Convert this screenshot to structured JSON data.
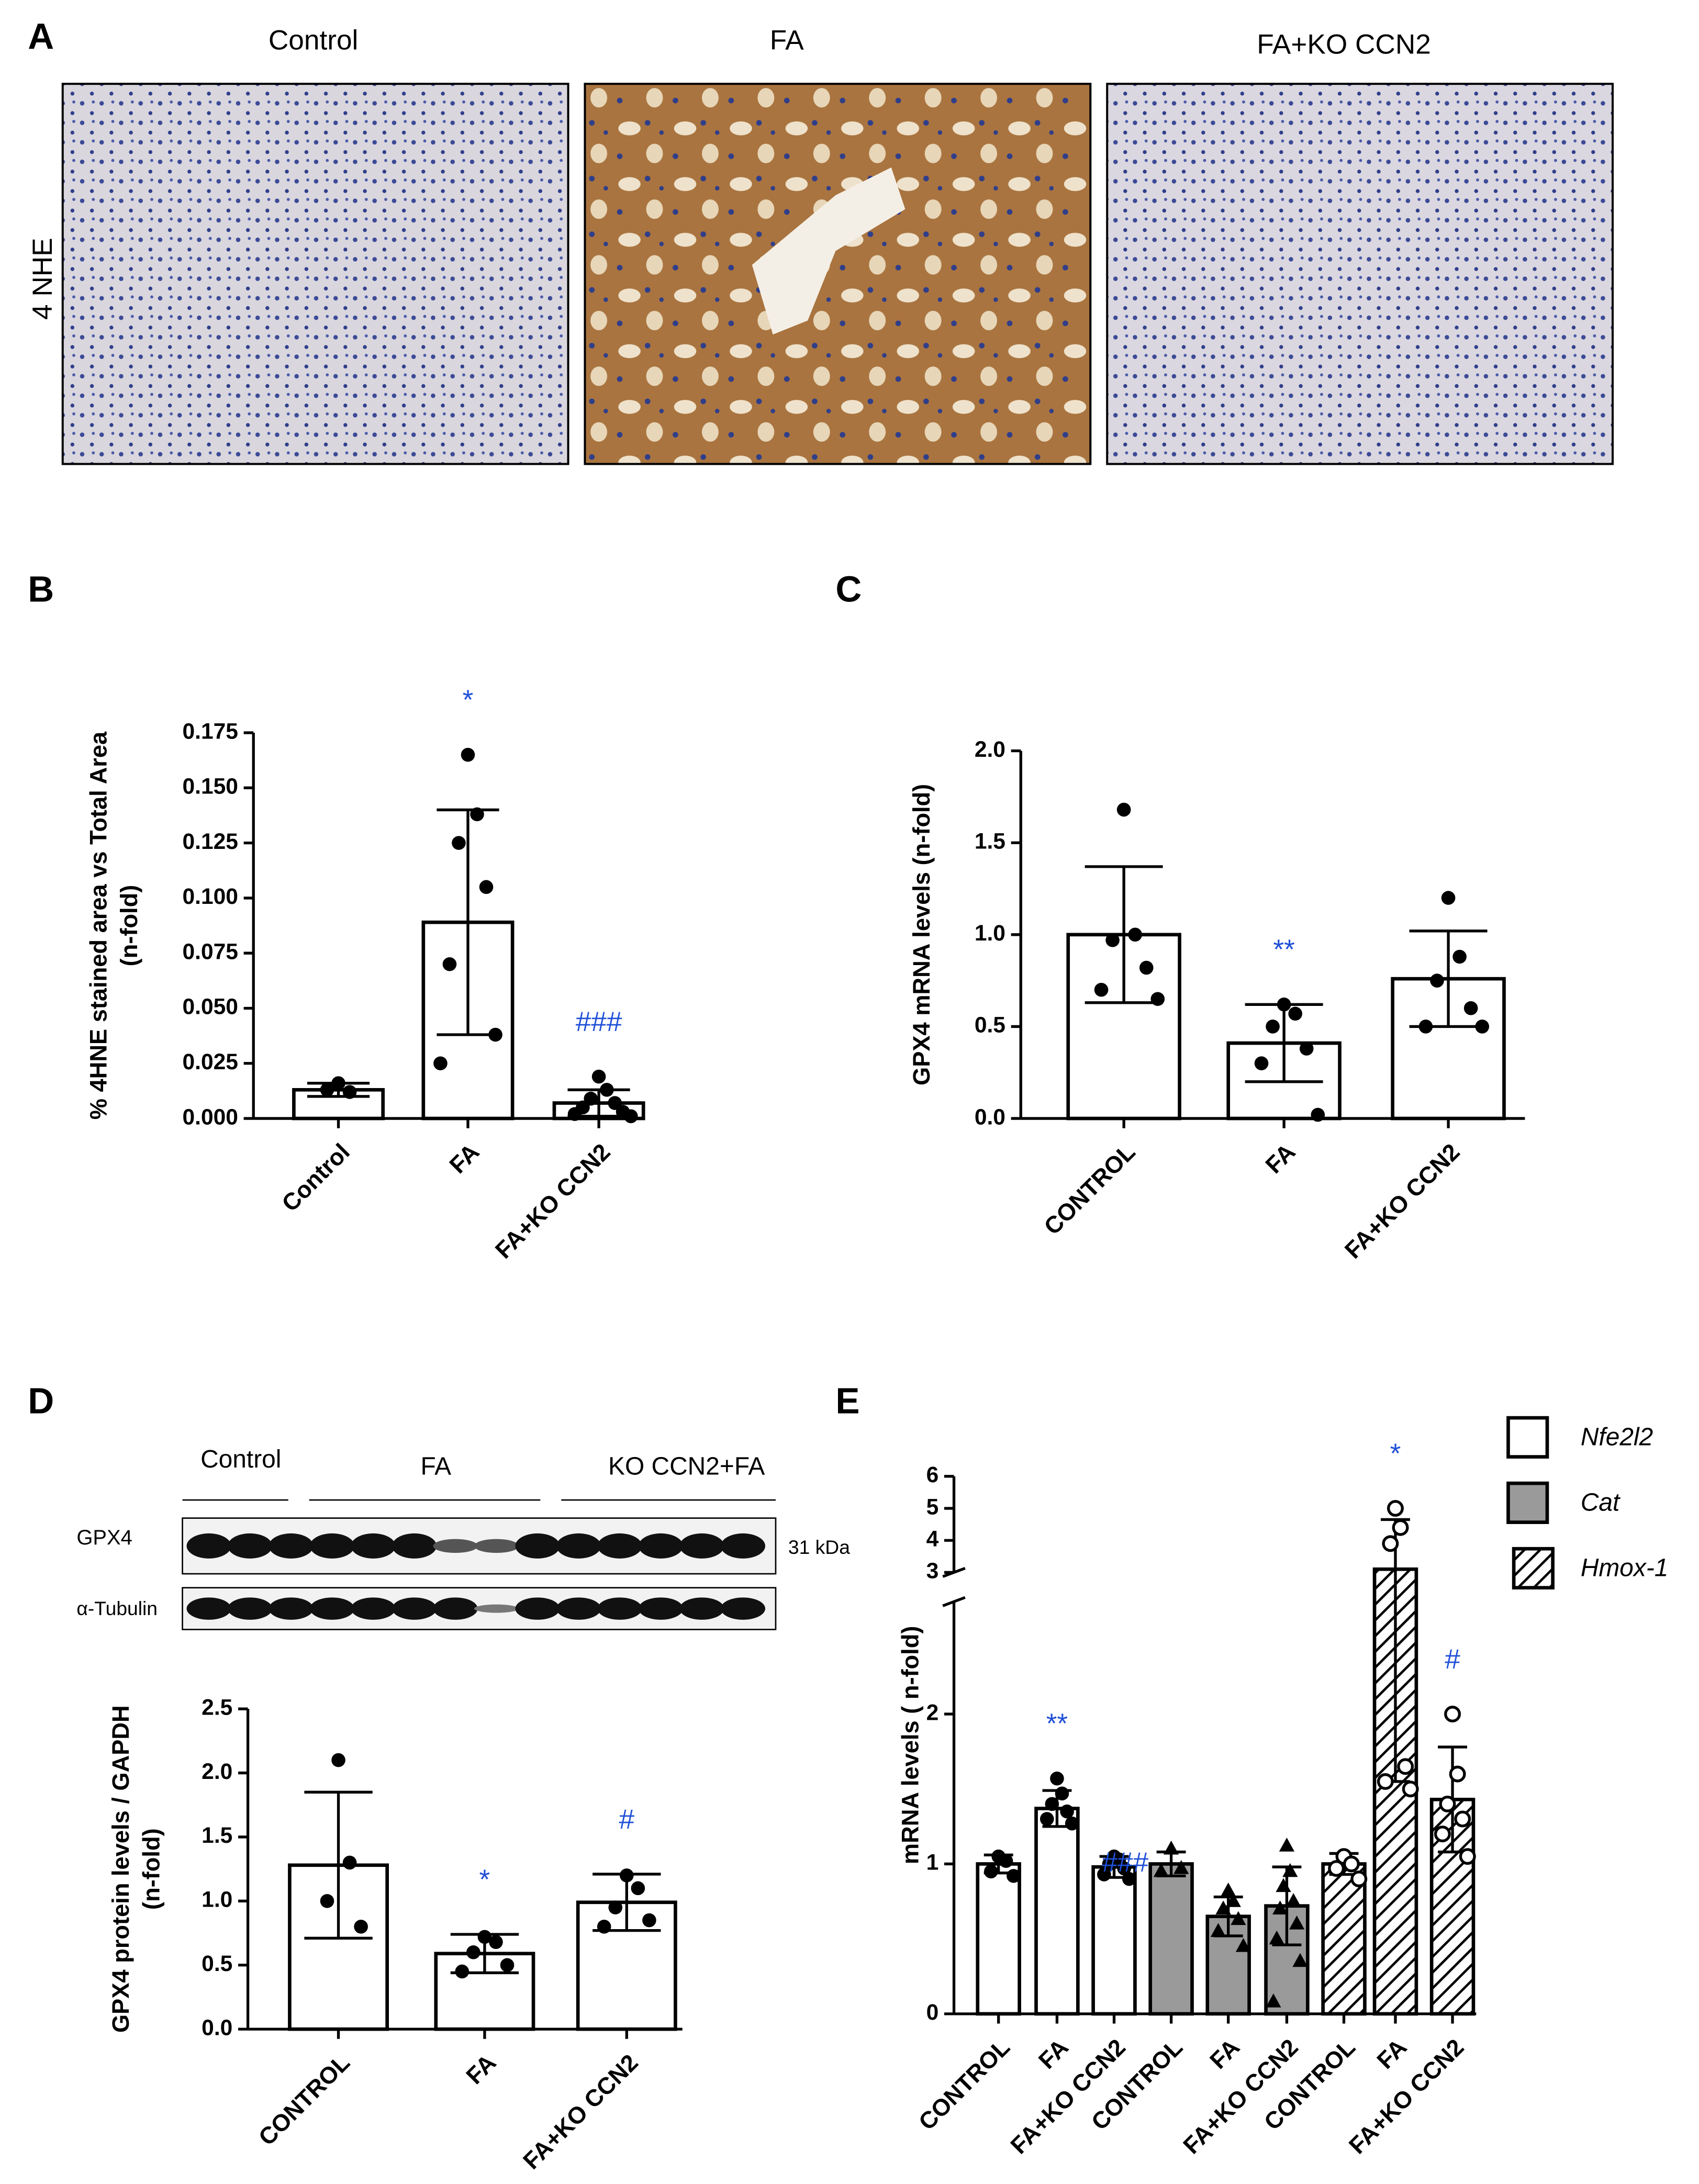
{
  "panel_a": {
    "label": "A",
    "row_label": "4 NHE",
    "columns": [
      "Control",
      "FA",
      "FA+KO CCN2"
    ]
  },
  "blot": {
    "label": "D",
    "groups": [
      "Control",
      "FA",
      "KO CCN2+FA"
    ],
    "rows": [
      "GPX4",
      "α-Tubulin"
    ],
    "size": "31 kDa"
  },
  "chart_data": [
    {
      "type": "bar",
      "panel": "B",
      "ylabel": [
        "% 4HNE stained area vs Total Area",
        "(n-fold)"
      ],
      "categories": [
        "Control",
        "FA",
        "FA+KO CCN2"
      ],
      "color": "#ffffff",
      "marker": "circle",
      "values": [
        0.013,
        0.089,
        0.007
      ],
      "errors": [
        0.003,
        0.051,
        0.006
      ],
      "points": [
        [
          0.016,
          0.012,
          0.013
        ],
        [
          0.165,
          0.138,
          0.125,
          0.105,
          0.07,
          0.038,
          0.025
        ],
        [
          0.019,
          0.013,
          0.009,
          0.007,
          0.005,
          0.003,
          0.002,
          0.001
        ]
      ],
      "annotations": [
        {
          "category": 1,
          "text": "*"
        },
        {
          "category": 2,
          "text": "###"
        }
      ],
      "ylim": [
        0,
        0.175
      ],
      "yticks": [
        {
          "value": 0,
          "label": "0.000"
        },
        {
          "value": 0.025,
          "label": "0.025"
        },
        {
          "value": 0.05,
          "label": "0.050"
        },
        {
          "value": 0.075,
          "label": "0.075"
        },
        {
          "value": 0.1,
          "label": "0.100"
        },
        {
          "value": 0.125,
          "label": "0.125"
        },
        {
          "value": 0.15,
          "label": "0.150"
        },
        {
          "value": 0.175,
          "label": "0.175"
        }
      ]
    },
    {
      "type": "bar",
      "panel": "C",
      "ylabel": [
        "GPX4 mRNA levels  (n-fold)"
      ],
      "categories": [
        "CONTROL",
        "FA",
        "FA+KO CCN2"
      ],
      "color": "#ffffff",
      "marker": "circle",
      "values": [
        1.0,
        0.41,
        0.76
      ],
      "errors": [
        0.37,
        0.21,
        0.26
      ],
      "points": [
        [
          1.68,
          1.0,
          0.97,
          0.82,
          0.7,
          0.65
        ],
        [
          0.62,
          0.57,
          0.5,
          0.38,
          0.3,
          0.02
        ],
        [
          1.2,
          0.88,
          0.75,
          0.6,
          0.5,
          0.5
        ]
      ],
      "annotations": [
        {
          "category": 1,
          "text": "**"
        }
      ],
      "ylim": [
        0,
        2.0
      ],
      "yticks": [
        {
          "value": 0,
          "label": "0.0"
        },
        0.5,
        {
          "value": 1,
          "label": "1.0"
        },
        1.5,
        {
          "value": 2,
          "label": "2.0"
        }
      ]
    },
    {
      "type": "bar",
      "ylabel": [
        "GPX4 protein levels / GAPDH",
        "(n-fold)"
      ],
      "categories": [
        "CONTROL",
        "FA",
        "FA+KO CCN2"
      ],
      "color": "#ffffff",
      "marker": "circle",
      "values": [
        1.28,
        0.59,
        0.99
      ],
      "errors": [
        0.57,
        0.15,
        0.22
      ],
      "points": [
        [
          2.1,
          1.3,
          1.0,
          0.8
        ],
        [
          0.72,
          0.68,
          0.6,
          0.5,
          0.45
        ],
        [
          1.2,
          1.1,
          0.95,
          0.85,
          0.8
        ]
      ],
      "annotations": [
        {
          "category": 1,
          "text": "*"
        },
        {
          "category": 2,
          "text": "#"
        }
      ],
      "ylim": [
        0,
        2.5
      ],
      "yticks": [
        {
          "value": 0,
          "label": "0.0"
        },
        0.5,
        {
          "value": 1,
          "label": "1.0"
        },
        1.5,
        {
          "value": 2,
          "label": "2.0"
        },
        2.5
      ]
    },
    {
      "type": "bar",
      "panel": "E",
      "ylabel": [
        "mRNA levels ( n-fold)"
      ],
      "legend": "upper right",
      "categories": [
        "CONTROL",
        "FA",
        "FA+KO CCN2"
      ],
      "ylim": [
        0,
        6
      ],
      "ybreak": [
        2.75,
        3
      ],
      "yticks": [
        0,
        1,
        2,
        3,
        4,
        5,
        6
      ],
      "series": [
        {
          "name": "Nfe2l2",
          "color": "#ffffff",
          "marker": "circle",
          "values": [
            1.0,
            1.37,
            0.98
          ],
          "errors": [
            0.06,
            0.12,
            0.07
          ],
          "points": [
            [
              1.05,
              1.02,
              0.95,
              0.92
            ],
            [
              1.57,
              1.47,
              1.4,
              1.35,
              1.3,
              1.27
            ],
            [
              1.05,
              1.03,
              1.0,
              0.97,
              0.93,
              0.9
            ]
          ],
          "annotations": [
            {
              "category": 1,
              "text": "**"
            },
            {
              "category": 2,
              "text": "###"
            }
          ]
        },
        {
          "name": "Cat",
          "color": "#9a9a9a",
          "marker": "triangle",
          "values": [
            1.0,
            0.65,
            0.72
          ],
          "errors": [
            0.08,
            0.13,
            0.26
          ],
          "points": [
            [
              1.1,
              0.97,
              0.95
            ],
            [
              0.82,
              0.75,
              0.7,
              0.63,
              0.55,
              0.45
            ],
            [
              1.12,
              0.95,
              0.85,
              0.75,
              0.7,
              0.6,
              0.5,
              0.35,
              0.08
            ]
          ]
        },
        {
          "name": "Hmox-1",
          "color": "#000000",
          "fill": "hatch",
          "marker": "open-circle",
          "values": [
            1.0,
            3.1,
            1.43
          ],
          "errors": [
            0.07,
            1.55,
            0.35
          ],
          "points": [
            [
              1.05,
              1.0,
              0.97,
              0.9
            ],
            [
              5.0,
              4.4,
              3.9,
              1.65,
              1.55,
              1.5
            ],
            [
              2.0,
              1.6,
              1.4,
              1.3,
              1.2,
              1.05
            ]
          ],
          "annotations": [
            {
              "category": 1,
              "text": "*"
            },
            {
              "category": 2,
              "text": "#"
            }
          ]
        }
      ]
    }
  ]
}
